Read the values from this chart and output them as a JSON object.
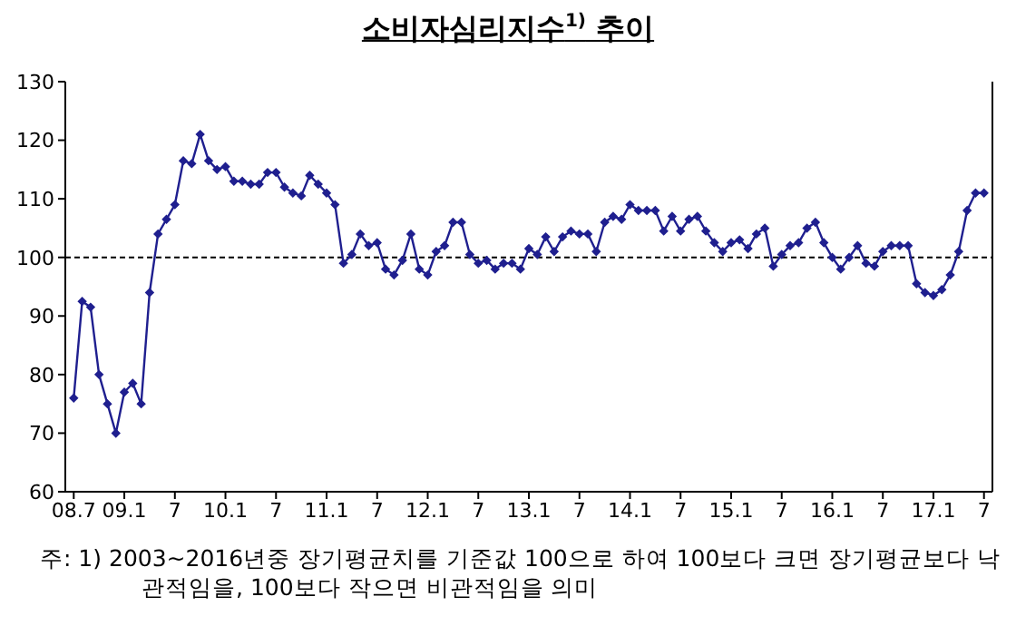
{
  "chart_data": {
    "type": "line",
    "title": "소비자심리지수$^{1)}$ 추이",
    "categories": [
      "08.7",
      null,
      null,
      null,
      null,
      null,
      "09.1",
      null,
      null,
      null,
      null,
      null,
      "7",
      null,
      null,
      null,
      null,
      null,
      "10.1",
      null,
      null,
      null,
      null,
      null,
      "7",
      null,
      null,
      null,
      null,
      null,
      "11.1",
      null,
      null,
      null,
      null,
      null,
      "7",
      null,
      null,
      null,
      null,
      null,
      "12.1",
      null,
      null,
      null,
      null,
      null,
      "7",
      null,
      null,
      null,
      null,
      null,
      "13.1",
      null,
      null,
      null,
      null,
      null,
      "7",
      null,
      null,
      null,
      null,
      null,
      "14.1",
      null,
      null,
      null,
      null,
      null,
      "7",
      null,
      null,
      null,
      null,
      null,
      "15.1",
      null,
      null,
      null,
      null,
      null,
      "7",
      null,
      null,
      null,
      null,
      null,
      "16.1",
      null,
      null,
      null,
      null,
      null,
      "7",
      null,
      null,
      null,
      null,
      null,
      "17.1",
      null,
      null,
      null,
      null,
      null,
      "7"
    ],
    "series": [
      {
        "color": "#1f1f8f",
        "values": [
          76,
          92.5,
          91.5,
          80,
          75,
          70,
          77,
          78.5,
          75,
          94,
          104,
          106.5,
          109,
          116.5,
          116,
          121,
          116.5,
          115,
          115.5,
          113,
          113,
          112.5,
          112.5,
          114.5,
          114.5,
          112,
          111,
          110.5,
          114,
          112.5,
          111,
          109,
          99,
          100.5,
          104,
          102,
          102.5,
          98,
          97,
          99.5,
          104,
          98,
          97,
          101,
          102,
          106,
          106,
          100.5,
          99,
          99.5,
          98,
          99,
          99,
          98,
          101.5,
          100.5,
          103.5,
          101,
          103.5,
          104.5,
          104,
          104,
          101,
          106,
          107,
          106.5,
          109,
          108,
          108,
          108,
          104.5,
          107,
          104.5,
          106.5,
          107,
          104.5,
          102.5,
          101,
          102.5,
          103,
          101.5,
          104,
          105,
          98.5,
          100.5,
          102,
          102.5,
          105,
          106,
          102.5,
          100,
          98,
          100,
          102,
          99,
          98.5,
          101,
          102,
          102,
          102,
          95.5,
          94,
          93.5,
          94.5,
          97,
          101,
          108,
          111,
          111
        ]
      }
    ],
    "ylim": [
      60,
      130
    ],
    "yticks": [
      60,
      70,
      80,
      90,
      100,
      110,
      120,
      130
    ],
    "marker": "diamond",
    "line_style": "solid",
    "ref_lines": [
      {
        "axis": "y",
        "value": 100,
        "color": "#000000",
        "line_style": "dashed"
      }
    ],
    "annotations": [
      "주:  1) 2003~2016년중 장기평균치를 기준값 100으로 하여 100보다 크면 장기평균보다 낙관적임을, 100보다 작으면 비관적임을 의미"
    ]
  }
}
